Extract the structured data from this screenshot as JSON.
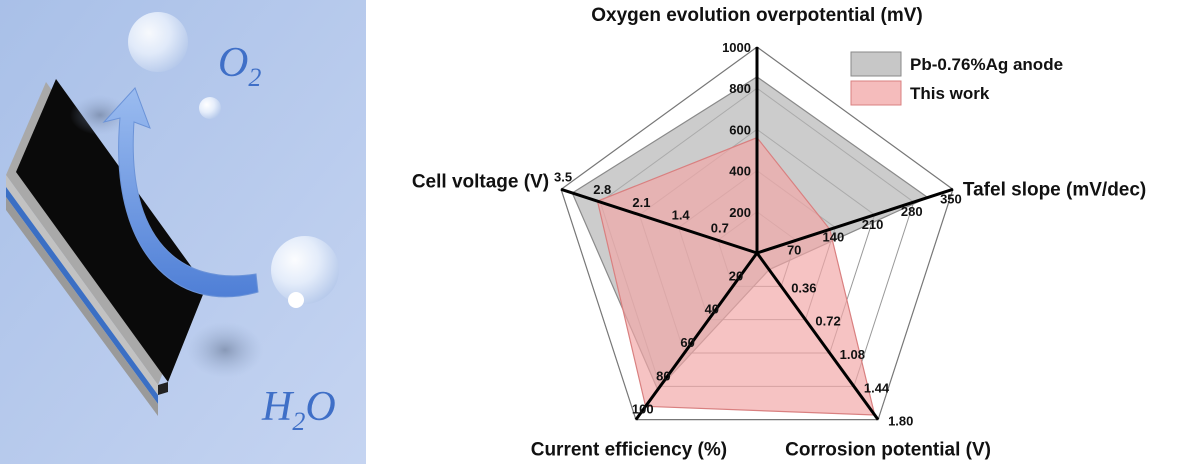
{
  "illustration": {
    "product_label": "O",
    "product_sub": "2",
    "reactant_label": "H",
    "reactant_sub": "2",
    "reactant_tail": "O"
  },
  "chart_data": {
    "type": "radar",
    "axes": [
      {
        "key": "oep",
        "label": "Oxygen evolution overpotential (mV)",
        "max": 1000,
        "ticks": [
          "200",
          "400",
          "600",
          "800",
          "1000"
        ]
      },
      {
        "key": "tafel",
        "label": "Tafel slope (mV/dec)",
        "max": 350,
        "ticks": [
          "70",
          "140",
          "210",
          "280",
          "350"
        ]
      },
      {
        "key": "corr",
        "label": "Corrosion potential (V)",
        "max": 1.8,
        "ticks": [
          "0.36",
          "0.72",
          "1.08",
          "1.44",
          "1.80"
        ]
      },
      {
        "key": "ce",
        "label": "Current efficiency (%)",
        "max": 100,
        "ticks": [
          "20",
          "40",
          "60",
          "80",
          "100"
        ]
      },
      {
        "key": "cv",
        "label": "Cell voltage (V)",
        "max": 3.5,
        "ticks": [
          "0.7",
          "1.4",
          "2.1",
          "2.8",
          "3.5"
        ]
      }
    ],
    "series": [
      {
        "name": "Pb-0.76%Ag anode",
        "color": "#b4b4b4",
        "edge": "#8a8a8a",
        "values": [
          855,
          305,
          0.18,
          82,
          3.3
        ]
      },
      {
        "name": "This work",
        "color": "#f2a6a6",
        "edge": "#d98080",
        "values": [
          560,
          130,
          1.75,
          92,
          2.85
        ]
      }
    ]
  }
}
